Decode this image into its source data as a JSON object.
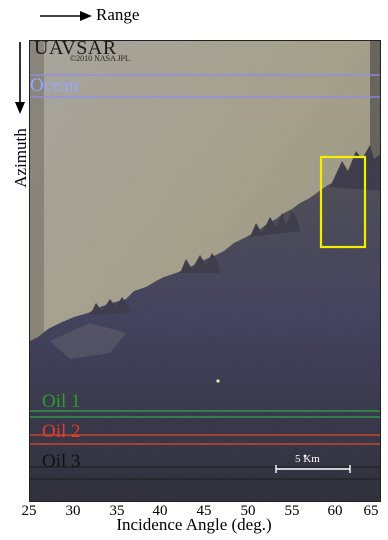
{
  "header": {
    "range_label": "Range",
    "azimuth_label": "Azimuth"
  },
  "image": {
    "brand": "UAVSAR",
    "credit": "©2010 NASA JPL",
    "regions": {
      "ocean": "Ocean",
      "oil1": "Oil 1",
      "oil2": "Oil 2",
      "oil3": "Oil 3"
    },
    "scale_bar": "5 Km",
    "colors": {
      "ocean": "#8e8cf0",
      "oil1": "#2fa84a",
      "oil2": "#e34a2a",
      "oil3": "#222222",
      "highlight_box": "#f0f000"
    }
  },
  "axis": {
    "ticks": [
      "25",
      "30",
      "35",
      "40",
      "45",
      "50",
      "55",
      "60",
      "65"
    ],
    "title": "Incidence Angle (deg.)"
  }
}
